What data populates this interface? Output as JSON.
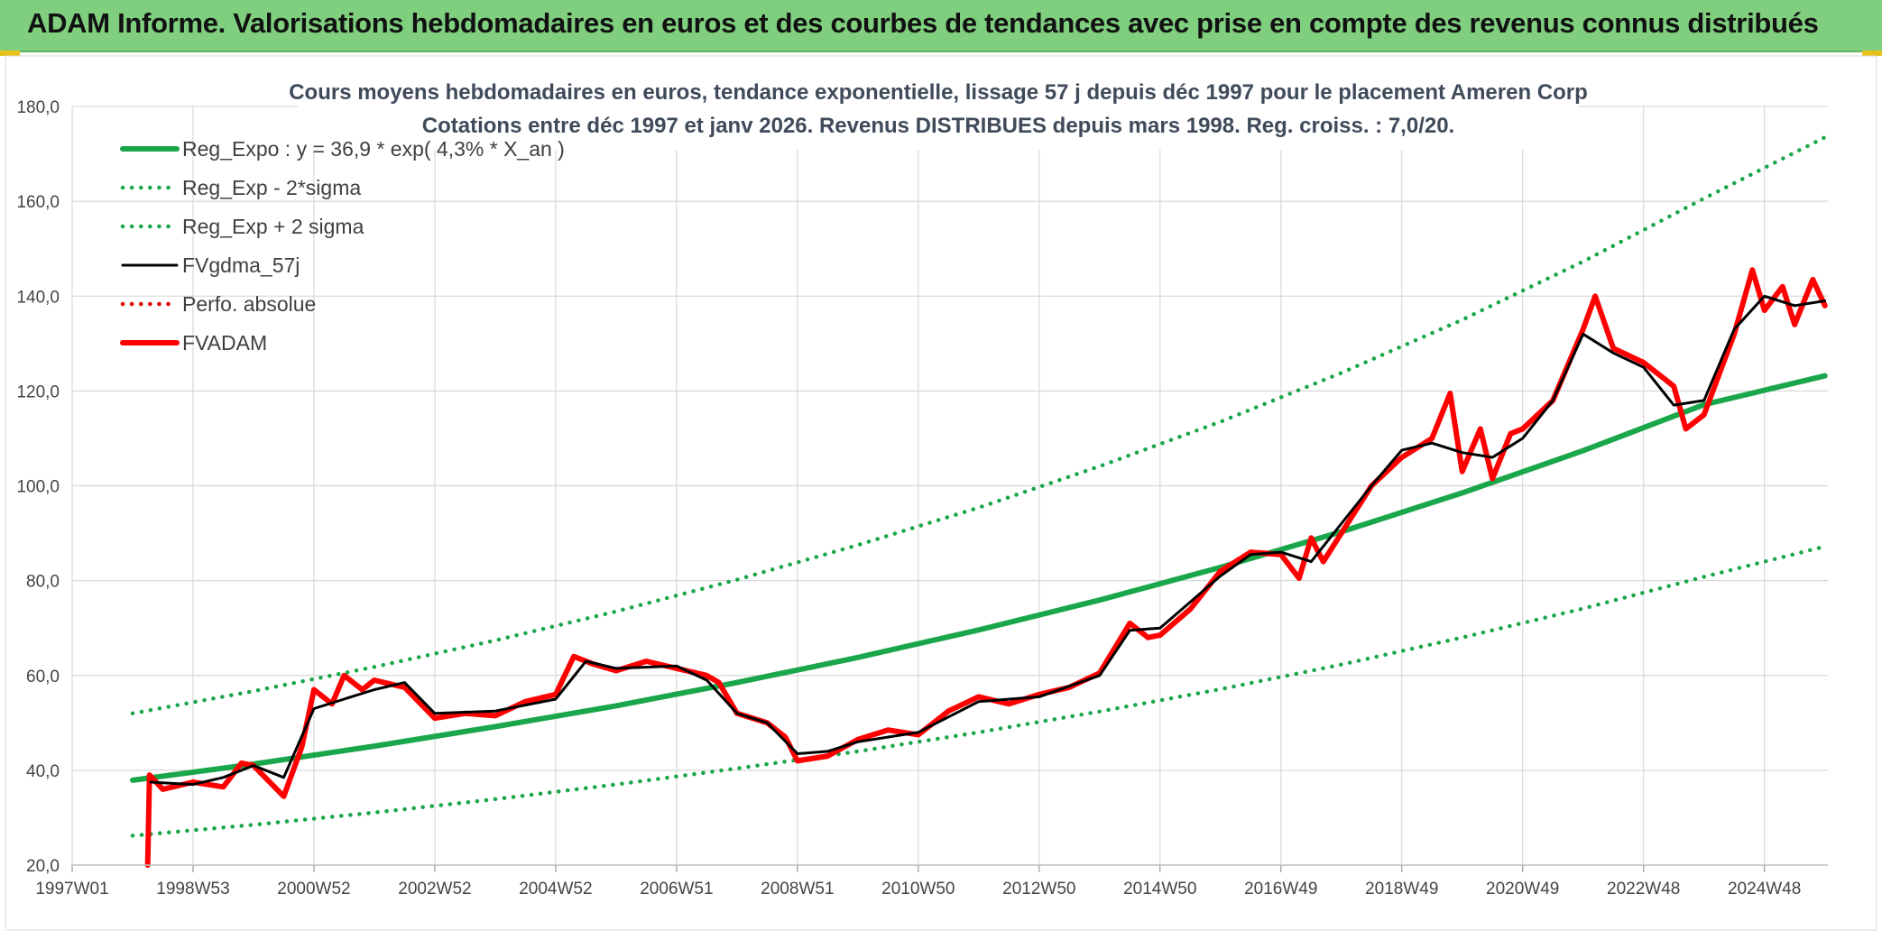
{
  "banner": {
    "title": "ADAM Informe. Valorisations hebdomadaires en euros et des courbes de tendances avec prise en compte des revenus connus distribués"
  },
  "colors": {
    "banner_bg": "#7fcf7f",
    "reg_expo": "#1aa64a",
    "sigma_band": "#1aa64a",
    "fvgdma": "#000000",
    "perfo": "#e00000",
    "fvadam": "#ff0000",
    "grid": "#d9d9d9"
  },
  "chart_data": {
    "type": "line",
    "title": "Cours moyens hebdomadaires en euros, tendance exponentielle, lissage 57 j depuis déc 1997 pour le placement Ameren Corp",
    "subtitle": "Cotations entre déc 1997 et janv 2026. Revenus DISTRIBUES depuis mars 1998. Reg. croiss. : 7,0/20.",
    "xlabel": "",
    "ylabel": "",
    "xlim": [
      1997.0,
      2026.05
    ],
    "ylim": [
      20,
      180
    ],
    "yticks": [
      "20,0",
      "40,0",
      "60,0",
      "80,0",
      "100,0",
      "120,0",
      "140,0",
      "160,0",
      "180,0"
    ],
    "xtick_labels": [
      "1997W01",
      "1998W53",
      "2000W52",
      "2002W52",
      "2004W52",
      "2006W51",
      "2008W51",
      "2010W50",
      "2012W50",
      "2014W50",
      "2016W49",
      "2018W49",
      "2020W49",
      "2022W48",
      "2024W48"
    ],
    "xtick_positions": [
      1997.0,
      1999.0,
      2001.0,
      2003.0,
      2005.0,
      2007.0,
      2009.0,
      2011.0,
      2013.0,
      2015.0,
      2017.0,
      2019.0,
      2021.0,
      2023.0,
      2025.0
    ],
    "grid": true,
    "legend_position": "top-left",
    "legend": [
      {
        "label": "Reg_Expo : y = 36,9 * exp( 4,3% *  X_an )",
        "style": "solid-thick",
        "color": "#1aa64a"
      },
      {
        "label": "Reg_Exp - 2*sigma",
        "style": "dotted",
        "color": "#1aa64a"
      },
      {
        "label": "Reg_Exp + 2 sigma",
        "style": "dotted",
        "color": "#1aa64a"
      },
      {
        "label": "FVgdma_57j",
        "style": "solid",
        "color": "#000000"
      },
      {
        "label": "Perfo. absolue",
        "style": "dotted",
        "color": "#e00000"
      },
      {
        "label": "FVADAM",
        "style": "solid-thick",
        "color": "#ff0000"
      }
    ],
    "series": [
      {
        "name": "Reg_Expo : y = 36,9 * exp( 4,3% *  X_an )",
        "x": [
          1998.0,
          2000.0,
          2002.0,
          2004.0,
          2006.0,
          2008.0,
          2010.0,
          2012.0,
          2014.0,
          2016.0,
          2018.0,
          2020.0,
          2022.0,
          2024.0,
          2026.0
        ],
        "y": [
          37.9,
          41.3,
          45.1,
          49.2,
          53.6,
          58.5,
          63.8,
          69.6,
          75.9,
          82.8,
          90.3,
          98.5,
          107.4,
          117.1,
          123.2
        ]
      },
      {
        "name": "Reg_Exp - 2*sigma",
        "x": [
          1998.0,
          2000.0,
          2002.0,
          2004.0,
          2006.0,
          2008.0,
          2010.0,
          2012.0,
          2014.0,
          2016.0,
          2018.0,
          2020.0,
          2022.0,
          2024.0,
          2026.0
        ],
        "y": [
          26.2,
          28.5,
          31.1,
          33.9,
          37.0,
          40.4,
          44.0,
          48.0,
          52.4,
          57.1,
          62.3,
          68.0,
          74.1,
          80.8,
          87.2
        ]
      },
      {
        "name": "Reg_Exp + 2 sigma",
        "x": [
          1998.0,
          2000.0,
          2002.0,
          2004.0,
          2006.0,
          2008.0,
          2010.0,
          2012.0,
          2014.0,
          2016.0,
          2018.0,
          2020.0,
          2022.0,
          2024.0,
          2026.0
        ],
        "y": [
          52.0,
          56.7,
          61.8,
          67.4,
          73.5,
          80.2,
          87.5,
          95.4,
          104.1,
          113.5,
          123.8,
          135.0,
          147.3,
          160.6,
          173.5
        ]
      },
      {
        "name": "FVgdma_57j",
        "x": [
          1998.3,
          1999.0,
          1999.5,
          2000.0,
          2000.5,
          2001.0,
          2001.5,
          2002.0,
          2002.5,
          2003.0,
          2004.0,
          2005.0,
          2005.5,
          2006.0,
          2007.0,
          2007.5,
          2008.0,
          2008.5,
          2009.0,
          2009.5,
          2010.0,
          2011.0,
          2012.0,
          2013.0,
          2014.0,
          2014.5,
          2015.0,
          2016.0,
          2016.5,
          2017.0,
          2017.5,
          2018.0,
          2018.5,
          2019.0,
          2019.5,
          2020.0,
          2020.5,
          2021.0,
          2021.5,
          2022.0,
          2022.5,
          2023.0,
          2023.5,
          2024.0,
          2024.5,
          2025.0,
          2025.5,
          2026.0
        ],
        "y": [
          37.5,
          37.0,
          38.5,
          41.0,
          38.5,
          53.0,
          55.0,
          57.0,
          58.5,
          52.0,
          52.5,
          55.0,
          63.0,
          61.5,
          62.0,
          59.0,
          52.0,
          50.0,
          43.5,
          44.0,
          46.0,
          48.0,
          54.5,
          55.5,
          60.0,
          69.5,
          70.0,
          81.0,
          85.5,
          86.0,
          84.0,
          92.0,
          100.0,
          107.5,
          109.0,
          107.0,
          106.0,
          110.0,
          118.0,
          132.0,
          128.0,
          125.0,
          117.0,
          118.0,
          133.0,
          140.0,
          138.0,
          139.0
        ]
      },
      {
        "name": "FVADAM",
        "x": [
          1998.25,
          1998.28,
          1998.5,
          1999.0,
          1999.5,
          1999.8,
          2000.0,
          2000.5,
          2000.8,
          2001.0,
          2001.3,
          2001.5,
          2001.8,
          2002.0,
          2002.5,
          2003.0,
          2003.5,
          2004.0,
          2004.5,
          2005.0,
          2005.3,
          2005.6,
          2006.0,
          2006.5,
          2007.0,
          2007.5,
          2007.7,
          2008.0,
          2008.5,
          2008.8,
          2009.0,
          2009.5,
          2010.0,
          2010.5,
          2011.0,
          2011.5,
          2012.0,
          2012.5,
          2013.0,
          2013.5,
          2014.0,
          2014.5,
          2014.8,
          2015.0,
          2015.5,
          2016.0,
          2016.5,
          2017.0,
          2017.3,
          2017.5,
          2017.7,
          2018.0,
          2018.5,
          2019.0,
          2019.5,
          2019.8,
          2020.0,
          2020.3,
          2020.5,
          2020.8,
          2021.0,
          2021.5,
          2022.0,
          2022.2,
          2022.5,
          2023.0,
          2023.5,
          2023.7,
          2024.0,
          2024.5,
          2024.8,
          2025.0,
          2025.3,
          2025.5,
          2025.8,
          2026.0
        ],
        "y": [
          20.0,
          39.0,
          36.0,
          37.5,
          36.5,
          41.5,
          41.0,
          34.5,
          45.0,
          57.0,
          54.0,
          60.0,
          57.0,
          59.0,
          57.5,
          51.0,
          52.0,
          51.5,
          54.5,
          56.0,
          64.0,
          62.5,
          61.0,
          63.0,
          61.5,
          60.0,
          58.5,
          52.0,
          50.0,
          47.0,
          42.0,
          43.0,
          46.5,
          48.5,
          47.5,
          52.5,
          55.5,
          54.0,
          56.0,
          57.5,
          60.5,
          71.0,
          68.0,
          68.5,
          74.0,
          82.0,
          86.0,
          85.5,
          80.5,
          89.0,
          84.0,
          90.0,
          100.0,
          106.0,
          110.0,
          119.5,
          103.0,
          112.0,
          101.5,
          111.0,
          112.0,
          118.0,
          133.0,
          140.0,
          129.0,
          126.0,
          121.0,
          112.0,
          115.0,
          132.0,
          145.5,
          137.0,
          142.0,
          134.0,
          143.5,
          138.0
        ]
      }
    ]
  }
}
